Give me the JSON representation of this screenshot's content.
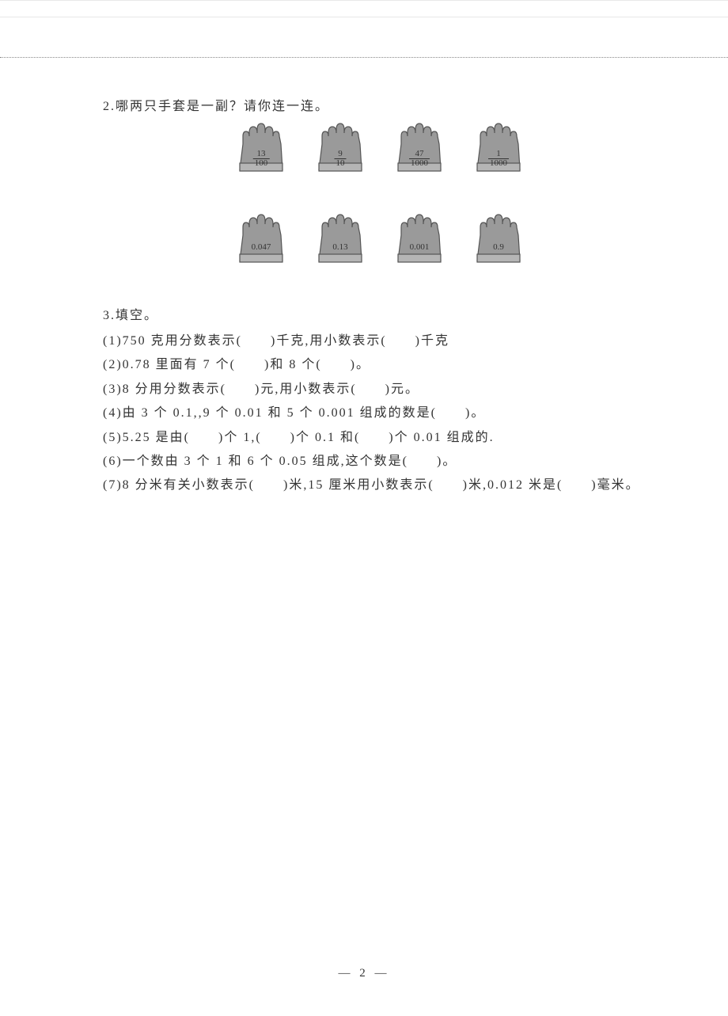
{
  "q2": {
    "title": "2.哪两只手套是一副？请你连一连。",
    "top_row": [
      {
        "num": "13",
        "den": "100"
      },
      {
        "num": "9",
        "den": "10"
      },
      {
        "num": "47",
        "den": "1000"
      },
      {
        "num": "1",
        "den": "1000"
      }
    ],
    "bottom_row": [
      "0.047",
      "0.13",
      "0.001",
      "0.9"
    ]
  },
  "q3": {
    "title": "3.填空。",
    "items": [
      "(1)750 克用分数表示(　　)千克,用小数表示(　　)千克",
      "(2)0.78 里面有 7 个(　　)和 8 个(　　)。",
      "(3)8 分用分数表示(　　)元,用小数表示(　　)元。",
      "(4)由 3 个 0.1,,9 个 0.01 和 5 个 0.001 组成的数是(　　)。",
      "(5)5.25 是由(　　)个 1,(　　)个 0.1 和(　　)个 0.01 组成的.",
      "(6)一个数由 3 个 1 和 6 个 0.05 组成,这个数是(　　)。",
      "(7)8 分米有关小数表示(　　)米,15 厘米用小数表示(　　)米,0.012 米是(　　)毫米。"
    ]
  },
  "page_number": "— 2 —",
  "colors": {
    "glove_fill": "#9a9a9a",
    "glove_stroke": "#555",
    "text": "#333333",
    "divider": "#888888"
  }
}
